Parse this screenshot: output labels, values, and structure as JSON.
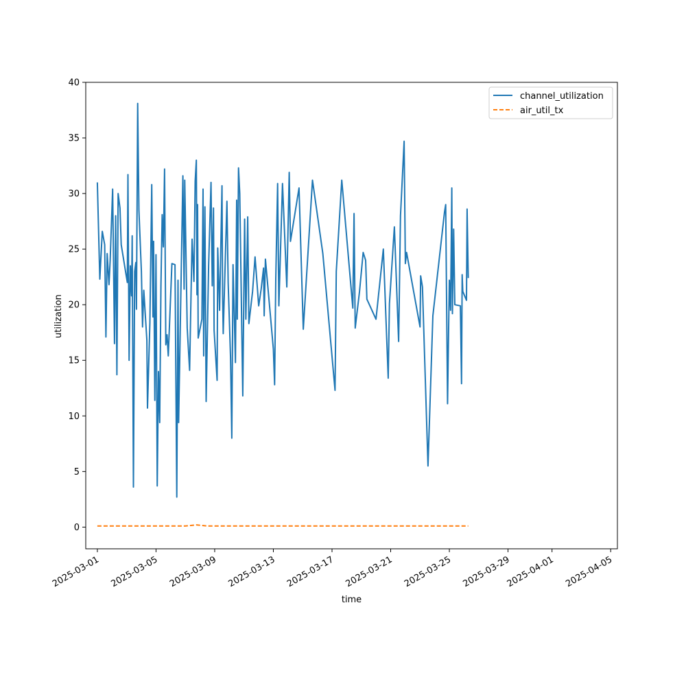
{
  "chart_data": {
    "type": "line",
    "xlabel": "time",
    "ylabel": "utilization",
    "ylim": [
      -1.95,
      40
    ],
    "xlim": [
      "2025-02-28T05:00",
      "2025-04-05T11:00"
    ],
    "x_ticks": [
      "2025-03-01",
      "2025-03-05",
      "2025-03-09",
      "2025-03-13",
      "2025-03-17",
      "2025-03-21",
      "2025-03-25",
      "2025-03-29",
      "2025-04-01",
      "2025-04-05"
    ],
    "y_ticks": [
      0,
      5,
      10,
      15,
      20,
      25,
      30,
      35,
      40
    ],
    "grid": false,
    "legend_position": "top-right",
    "series": [
      {
        "name": "channel_utilization",
        "color": "#1f77b4",
        "dash": "solid",
        "points": [
          [
            "2025-03-01T00:00",
            31.0
          ],
          [
            "2025-03-01T04:00",
            22.3
          ],
          [
            "2025-03-01T08:00",
            26.6
          ],
          [
            "2025-03-01T12:00",
            25.4
          ],
          [
            "2025-03-01T14:00",
            17.1
          ],
          [
            "2025-03-01T16:00",
            24.6
          ],
          [
            "2025-03-01T19:00",
            21.8
          ],
          [
            "2025-03-01T21:00",
            24.0
          ],
          [
            "2025-03-02T01:00",
            30.4
          ],
          [
            "2025-03-02T04:00",
            16.5
          ],
          [
            "2025-03-02T06:00",
            28.0
          ],
          [
            "2025-03-02T08:00",
            13.7
          ],
          [
            "2025-03-02T10:00",
            30.0
          ],
          [
            "2025-03-02T13:00",
            28.7
          ],
          [
            "2025-03-02T15:00",
            25.4
          ],
          [
            "2025-03-03T01:00",
            22.0
          ],
          [
            "2025-03-03T02:00",
            31.7
          ],
          [
            "2025-03-03T04:00",
            15.0
          ],
          [
            "2025-03-03T06:00",
            23.5
          ],
          [
            "2025-03-03T08:00",
            20.8
          ],
          [
            "2025-03-03T09:00",
            26.2
          ],
          [
            "2025-03-03T11:00",
            3.6
          ],
          [
            "2025-03-03T13:00",
            23.0
          ],
          [
            "2025-03-03T15:00",
            23.8
          ],
          [
            "2025-03-03T16:00",
            19.6
          ],
          [
            "2025-03-03T18:00",
            38.1
          ],
          [
            "2025-03-03T20:00",
            28.5
          ],
          [
            "2025-03-04T00:00",
            23.0
          ],
          [
            "2025-03-04T02:00",
            18.0
          ],
          [
            "2025-03-04T04:00",
            21.3
          ],
          [
            "2025-03-04T09:00",
            16.8
          ],
          [
            "2025-03-04T10:00",
            10.7
          ],
          [
            "2025-03-04T14:00",
            18.4
          ],
          [
            "2025-03-04T17:00",
            30.8
          ],
          [
            "2025-03-04T19:00",
            18.9
          ],
          [
            "2025-03-04T20:00",
            25.7
          ],
          [
            "2025-03-04T22:00",
            11.4
          ],
          [
            "2025-03-05T00:00",
            24.5
          ],
          [
            "2025-03-05T02:00",
            3.7
          ],
          [
            "2025-03-05T04:00",
            14.0
          ],
          [
            "2025-03-05T06:00",
            9.4
          ],
          [
            "2025-03-05T08:00",
            21.7
          ],
          [
            "2025-03-05T10:00",
            28.1
          ],
          [
            "2025-03-05T12:00",
            25.2
          ],
          [
            "2025-03-05T14:00",
            32.2
          ],
          [
            "2025-03-05T16:00",
            16.4
          ],
          [
            "2025-03-05T18:00",
            17.3
          ],
          [
            "2025-03-05T20:00",
            15.4
          ],
          [
            "2025-03-06T02:00",
            23.7
          ],
          [
            "2025-03-06T07:00",
            23.6
          ],
          [
            "2025-03-06T10:00",
            2.7
          ],
          [
            "2025-03-06T12:00",
            22.2
          ],
          [
            "2025-03-06T13:00",
            9.4
          ],
          [
            "2025-03-06T20:00",
            31.6
          ],
          [
            "2025-03-06T22:00",
            21.4
          ],
          [
            "2025-03-06T23:00",
            31.2
          ],
          [
            "2025-03-07T03:00",
            17.9
          ],
          [
            "2025-03-07T07:00",
            14.1
          ],
          [
            "2025-03-07T11:00",
            25.9
          ],
          [
            "2025-03-07T14:00",
            22.1
          ],
          [
            "2025-03-07T16:00",
            31.1
          ],
          [
            "2025-03-07T18:00",
            33.0
          ],
          [
            "2025-03-07T19:00",
            20.9
          ],
          [
            "2025-03-07T20:00",
            29.0
          ],
          [
            "2025-03-07T21:00",
            17.0
          ],
          [
            "2025-03-08T03:00",
            18.7
          ],
          [
            "2025-03-08T05:00",
            30.4
          ],
          [
            "2025-03-08T06:00",
            15.4
          ],
          [
            "2025-03-08T08:00",
            28.8
          ],
          [
            "2025-03-08T10:00",
            11.3
          ],
          [
            "2025-03-08T14:00",
            23.5
          ],
          [
            "2025-03-08T18:00",
            31.0
          ],
          [
            "2025-03-08T20:00",
            21.7
          ],
          [
            "2025-03-08T22:00",
            28.7
          ],
          [
            "2025-03-08T23:00",
            17.7
          ],
          [
            "2025-03-09T04:00",
            13.2
          ],
          [
            "2025-03-09T05:00",
            25.1
          ],
          [
            "2025-03-09T08:00",
            19.5
          ],
          [
            "2025-03-09T12:00",
            30.7
          ],
          [
            "2025-03-09T13:00",
            20.9
          ],
          [
            "2025-03-09T14:00",
            17.4
          ],
          [
            "2025-03-09T20:00",
            29.3
          ],
          [
            "2025-03-09T22:00",
            22.0
          ],
          [
            "2025-03-10T02:00",
            15.2
          ],
          [
            "2025-03-10T04:00",
            8.0
          ],
          [
            "2025-03-10T06:00",
            23.6
          ],
          [
            "2025-03-10T10:00",
            14.8
          ],
          [
            "2025-03-10T12:00",
            29.4
          ],
          [
            "2025-03-10T13:00",
            18.7
          ],
          [
            "2025-03-10T15:00",
            32.3
          ],
          [
            "2025-03-10T17:00",
            30.0
          ],
          [
            "2025-03-10T22:00",
            11.8
          ],
          [
            "2025-03-11T01:00",
            27.7
          ],
          [
            "2025-03-11T03:00",
            18.7
          ],
          [
            "2025-03-11T06:00",
            27.9
          ],
          [
            "2025-03-11T08:00",
            18.3
          ],
          [
            "2025-03-11T14:00",
            21.2
          ],
          [
            "2025-03-11T18:00",
            24.3
          ],
          [
            "2025-03-12T00:00",
            19.9
          ],
          [
            "2025-03-12T04:00",
            21.4
          ],
          [
            "2025-03-12T08:00",
            23.3
          ],
          [
            "2025-03-12T09:00",
            19.0
          ],
          [
            "2025-03-12T11:00",
            24.1
          ],
          [
            "2025-03-13T00:00",
            16.0
          ],
          [
            "2025-03-13T02:00",
            12.8
          ],
          [
            "2025-03-13T04:00",
            22.3
          ],
          [
            "2025-03-13T07:00",
            30.9
          ],
          [
            "2025-03-13T09:00",
            19.9
          ],
          [
            "2025-03-13T15:00",
            30.9
          ],
          [
            "2025-03-13T22:00",
            21.6
          ],
          [
            "2025-03-14T02:00",
            31.9
          ],
          [
            "2025-03-14T04:00",
            25.7
          ],
          [
            "2025-03-14T18:00",
            30.5
          ],
          [
            "2025-03-15T01:00",
            17.8
          ],
          [
            "2025-03-15T16:00",
            31.2
          ],
          [
            "2025-03-16T09:00",
            24.6
          ],
          [
            "2025-03-17T05:00",
            12.3
          ],
          [
            "2025-03-17T07:00",
            23.0
          ],
          [
            "2025-03-17T16:00",
            31.2
          ],
          [
            "2025-03-18T10:00",
            19.7
          ],
          [
            "2025-03-18T12:00",
            28.2
          ],
          [
            "2025-03-18T14:00",
            17.9
          ],
          [
            "2025-03-18T21:00",
            21.2
          ],
          [
            "2025-03-19T03:00",
            24.7
          ],
          [
            "2025-03-19T07:00",
            24.0
          ],
          [
            "2025-03-19T09:00",
            20.5
          ],
          [
            "2025-03-20T00:00",
            18.7
          ],
          [
            "2025-03-20T12:00",
            25.0
          ],
          [
            "2025-03-20T20:00",
            13.4
          ],
          [
            "2025-03-20T22:00",
            20.1
          ],
          [
            "2025-03-21T06:00",
            27.0
          ],
          [
            "2025-03-21T13:00",
            16.7
          ],
          [
            "2025-03-21T16:00",
            28.0
          ],
          [
            "2025-03-21T22:00",
            34.7
          ],
          [
            "2025-03-22T00:00",
            23.7
          ],
          [
            "2025-03-22T02:00",
            24.7
          ],
          [
            "2025-03-23T00:00",
            18.0
          ],
          [
            "2025-03-23T01:00",
            22.6
          ],
          [
            "2025-03-23T04:00",
            21.6
          ],
          [
            "2025-03-23T13:00",
            5.5
          ],
          [
            "2025-03-23T21:00",
            19.0
          ],
          [
            "2025-03-24T16:00",
            28.3
          ],
          [
            "2025-03-24T18:00",
            29.0
          ],
          [
            "2025-03-24T21:00",
            11.1
          ],
          [
            "2025-03-25T00:00",
            22.2
          ],
          [
            "2025-03-25T02:00",
            19.5
          ],
          [
            "2025-03-25T04:00",
            30.5
          ],
          [
            "2025-03-25T05:00",
            19.2
          ],
          [
            "2025-03-25T07:00",
            26.8
          ],
          [
            "2025-03-25T09:00",
            20.0
          ],
          [
            "2025-03-25T18:00",
            19.9
          ],
          [
            "2025-03-25T20:00",
            12.9
          ],
          [
            "2025-03-25T21:00",
            22.7
          ],
          [
            "2025-03-25T22:00",
            21.2
          ],
          [
            "2025-03-26T04:00",
            20.4
          ],
          [
            "2025-03-26T05:00",
            28.6
          ],
          [
            "2025-03-26T07:00",
            22.4
          ]
        ]
      },
      {
        "name": "air_util_tx",
        "color": "#ff7f0e",
        "dash": "dashed",
        "points": [
          [
            "2025-03-01T00:00",
            0.1
          ],
          [
            "2025-03-01T20:00",
            0.1
          ],
          [
            "2025-03-02T12:00",
            0.1
          ],
          [
            "2025-03-03T02:00",
            0.1
          ],
          [
            "2025-03-03T12:00",
            0.1
          ],
          [
            "2025-03-04T08:00",
            0.1
          ],
          [
            "2025-03-05T06:00",
            0.1
          ],
          [
            "2025-03-06T04:00",
            0.1
          ],
          [
            "2025-03-07T00:00",
            0.1
          ],
          [
            "2025-03-07T18:00",
            0.2
          ],
          [
            "2025-03-08T12:00",
            0.1
          ],
          [
            "2025-03-09T10:00",
            0.1
          ],
          [
            "2025-03-10T08:00",
            0.1
          ],
          [
            "2025-03-11T06:00",
            0.1
          ],
          [
            "2025-03-12T12:00",
            0.1
          ],
          [
            "2025-03-13T12:00",
            0.1
          ],
          [
            "2025-03-14T12:00",
            0.1
          ],
          [
            "2025-03-15T12:00",
            0.1
          ],
          [
            "2025-03-16T12:00",
            0.1
          ],
          [
            "2025-03-17T12:00",
            0.1
          ],
          [
            "2025-03-18T12:00",
            0.1
          ],
          [
            "2025-03-19T12:00",
            0.1
          ],
          [
            "2025-03-20T12:00",
            0.1
          ],
          [
            "2025-03-21T12:00",
            0.1
          ],
          [
            "2025-03-22T12:00",
            0.1
          ],
          [
            "2025-03-23T12:00",
            0.1
          ],
          [
            "2025-03-24T12:00",
            0.1
          ],
          [
            "2025-03-25T12:00",
            0.1
          ],
          [
            "2025-03-26T07:00",
            0.1
          ]
        ]
      }
    ]
  }
}
